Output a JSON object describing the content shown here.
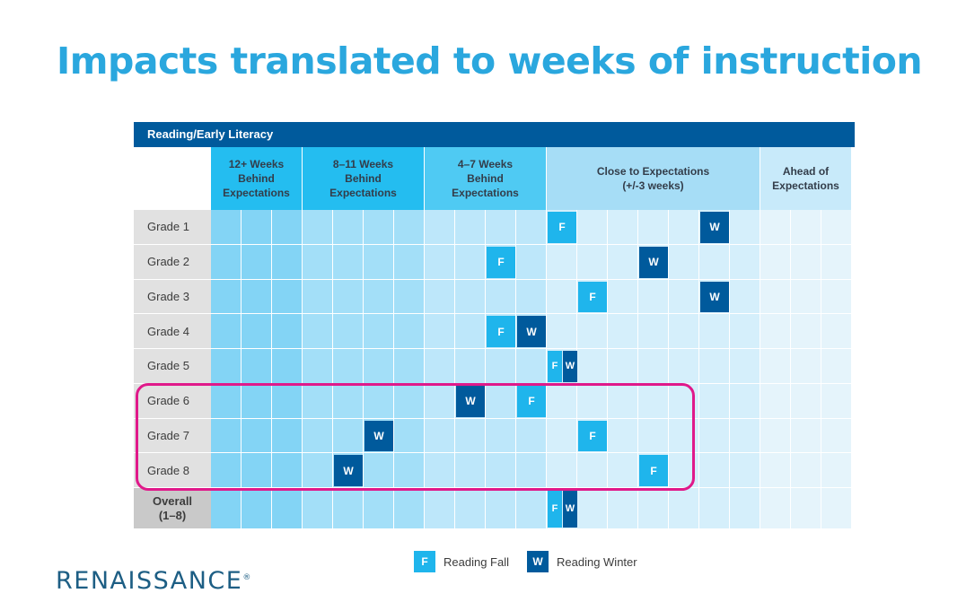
{
  "title": "Impacts translated to weeks of instruction",
  "colors": {
    "fall": "#1fb5ec",
    "winter": "#005a9c",
    "band_fills": [
      "#83d4f5",
      "#a3dff8",
      "#bde7fa",
      "#d5effb",
      "#e5f4fb"
    ],
    "header_fills": [
      "#24bdf0",
      "#24bdf0",
      "#4fcaf3",
      "#a6ddf6",
      "#c8eafa"
    ],
    "highlight": "#e0198a"
  },
  "chart_data": {
    "type": "table",
    "section_title": "Reading/Early Literacy",
    "bands": [
      {
        "label": "12+ Weeks Behind Expectations",
        "lines": [
          "12+ Weeks",
          "Behind",
          "Expectations"
        ],
        "columns": 3
      },
      {
        "label": "8–11 Weeks Behind Expectations",
        "lines": [
          "8–11 Weeks",
          "Behind",
          "Expectations"
        ],
        "columns": 4
      },
      {
        "label": "4–7 Weeks Behind Expectations",
        "lines": [
          "4–7 Weeks",
          "Behind",
          "Expectations"
        ],
        "columns": 4
      },
      {
        "label": "Close to Expectations (+/-3 weeks)",
        "lines": [
          "Close to Expectations",
          "(+/-3 weeks)"
        ],
        "columns": 7
      },
      {
        "label": "Ahead of Expectations",
        "lines": [
          "Ahead of",
          "Expectations"
        ],
        "columns": 3
      }
    ],
    "rows": [
      {
        "label": "Grade 1",
        "fall_column": 11,
        "winter_column": 16
      },
      {
        "label": "Grade 2",
        "fall_column": 9,
        "winter_column": 14
      },
      {
        "label": "Grade 3",
        "fall_column": 12,
        "winter_column": 16
      },
      {
        "label": "Grade 4",
        "fall_column": 9,
        "winter_column": 10
      },
      {
        "label": "Grade 5",
        "fall_column": 11,
        "winter_column": 11
      },
      {
        "label": "Grade 6",
        "fall_column": 10,
        "winter_column": 8
      },
      {
        "label": "Grade 7",
        "fall_column": 12,
        "winter_column": 5
      },
      {
        "label": "Grade 8",
        "fall_column": 14,
        "winter_column": 4
      },
      {
        "label": "Overall\n(1–8)",
        "fall_column": 11,
        "winter_column": 11,
        "overall": true
      }
    ],
    "highlighted_rows": [
      "Grade 6",
      "Grade 7",
      "Grade 8"
    ],
    "legend": [
      {
        "marker": "F",
        "label": "Reading Fall"
      },
      {
        "marker": "W",
        "label": "Reading Winter"
      }
    ]
  },
  "logo": {
    "text": "RENAISSANCE",
    "mark": "®"
  }
}
